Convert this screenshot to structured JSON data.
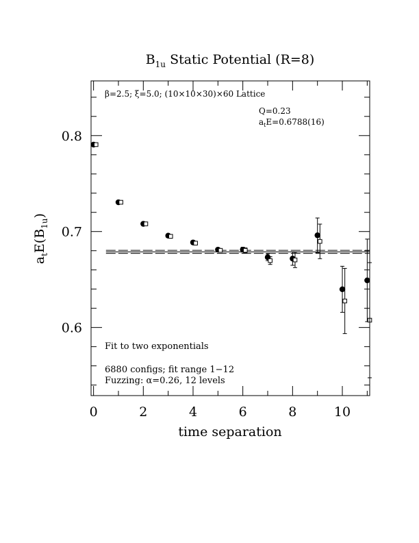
{
  "chart_data": {
    "type": "scatter",
    "title_main": "B",
    "title_sub": "1u",
    "title_rest": " Static Potential (R=8)",
    "xlabel": "time separation",
    "ylabel_a": "a",
    "ylabel_t": "t",
    "ylabel_mid": "E(B",
    "ylabel_sub": "1u",
    "ylabel_end": ")",
    "xlim": [
      -0.1,
      11.1
    ],
    "ylim": [
      0.529,
      0.857
    ],
    "x_ticks": [
      0,
      2,
      4,
      6,
      8,
      10
    ],
    "x_tick_labels": [
      "0",
      "2",
      "4",
      "6",
      "8",
      "10"
    ],
    "y_ticks": [
      0.6,
      0.7,
      0.8
    ],
    "y_tick_labels": [
      "0.6",
      "0.7",
      "0.8"
    ],
    "annotations": {
      "lattice": "β=2.5; ξ=5.0; (10×10×30)×60 Lattice",
      "q_value": "Q=0.23",
      "energy_a": "a",
      "energy_t": "t",
      "energy_rest": "E=0.6788(16)",
      "fit_type": "Fit to two exponentials",
      "configs": "6880 configs; fit range 1−12",
      "fuzzing": "Fuzzing: α=0.26, 12 levels"
    },
    "fit": {
      "value": 0.6788,
      "error": 0.0016,
      "x_range": [
        0.5,
        11.1
      ]
    },
    "series": [
      {
        "marker": "filled-circle",
        "points": [
          {
            "x": 0,
            "y": 0.7906,
            "err": 0.0008
          },
          {
            "x": 1,
            "y": 0.7305,
            "err": 0.0012
          },
          {
            "x": 2,
            "y": 0.708,
            "err": 0.0012
          },
          {
            "x": 3,
            "y": 0.6957,
            "err": 0.0012
          },
          {
            "x": 4,
            "y": 0.6886,
            "err": 0.0012
          },
          {
            "x": 5,
            "y": 0.6811,
            "err": 0.0015
          },
          {
            "x": 6,
            "y": 0.6811,
            "err": 0.0025
          },
          {
            "x": 7,
            "y": 0.6732,
            "err": 0.0035
          },
          {
            "x": 8,
            "y": 0.6718,
            "err": 0.007
          },
          {
            "x": 9,
            "y": 0.6961,
            "err": 0.018
          },
          {
            "x": 10,
            "y": 0.6398,
            "err": 0.024
          },
          {
            "x": 11,
            "y": 0.6491,
            "err": 0.043
          }
        ]
      },
      {
        "marker": "open-square",
        "points": [
          {
            "x": 0.1,
            "y": 0.7906,
            "err": 0.0008
          },
          {
            "x": 1.1,
            "y": 0.7305,
            "err": 0.0012
          },
          {
            "x": 2.1,
            "y": 0.708,
            "err": 0.0012
          },
          {
            "x": 3.1,
            "y": 0.695,
            "err": 0.0012
          },
          {
            "x": 4.1,
            "y": 0.6879,
            "err": 0.0012
          },
          {
            "x": 5.1,
            "y": 0.6804,
            "err": 0.0015
          },
          {
            "x": 6.1,
            "y": 0.6804,
            "err": 0.0025
          },
          {
            "x": 7.1,
            "y": 0.6697,
            "err": 0.004
          },
          {
            "x": 8.1,
            "y": 0.6704,
            "err": 0.008
          },
          {
            "x": 9.1,
            "y": 0.6897,
            "err": 0.018
          },
          {
            "x": 10.1,
            "y": 0.6276,
            "err": 0.034
          },
          {
            "x": 11.1,
            "y": 0.6076,
            "err": 0.06
          }
        ]
      }
    ]
  }
}
